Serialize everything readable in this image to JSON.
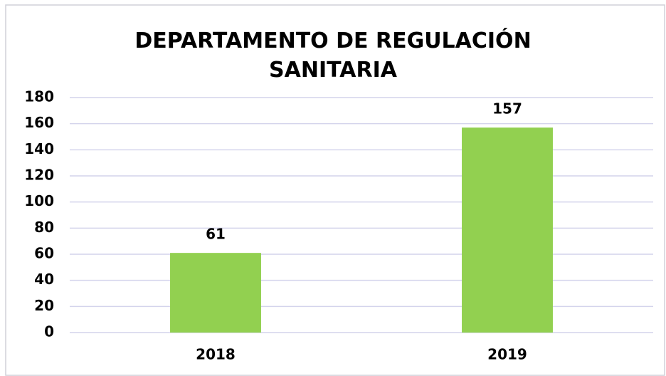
{
  "chart_data": {
    "type": "bar",
    "title": "DEPARTAMENTO DE REGULACIÓN SANITARIA",
    "categories": [
      "2018",
      "2019"
    ],
    "values": [
      61,
      157
    ],
    "color": "#92d050",
    "ylim": [
      0,
      180
    ],
    "yticks": [
      0,
      20,
      40,
      60,
      80,
      100,
      120,
      140,
      160,
      180
    ],
    "grid": true
  }
}
